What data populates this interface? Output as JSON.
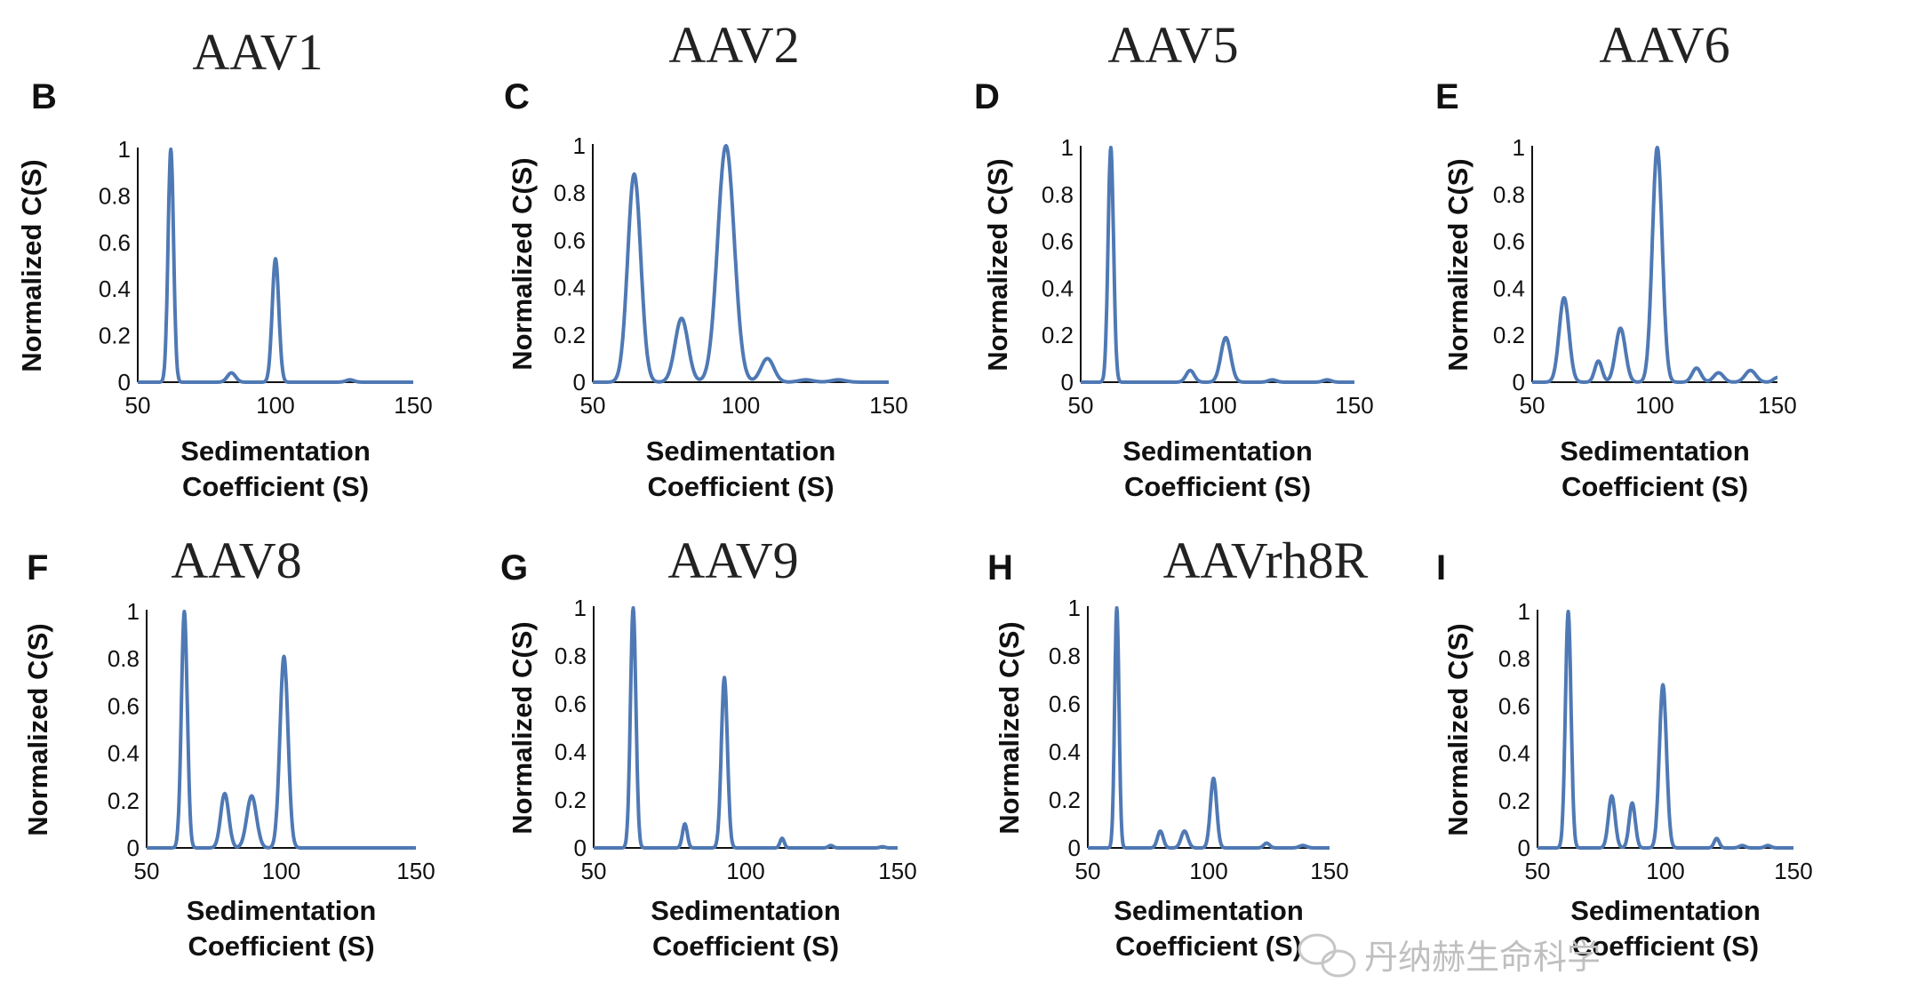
{
  "watermark": {
    "text": "丹纳赫生命科学"
  },
  "chart_data": [
    {
      "id": "B",
      "type": "line",
      "title": "AAV1",
      "xlabel": [
        "Sedimentation",
        "Coefficient (S)"
      ],
      "ylabel": "Normalized C(S)",
      "xlim": [
        50,
        150
      ],
      "ylim": [
        0,
        1
      ],
      "xticks": [
        "50",
        "100",
        "150"
      ],
      "yticks": [
        "0",
        "0.2",
        "0.4",
        "0.6",
        "0.8",
        "1"
      ],
      "peaks": [
        {
          "x": 62,
          "y": 1,
          "w": 1.0
        },
        {
          "x": 84,
          "y": 0.04,
          "w": 1.5
        },
        {
          "x": 100,
          "y": 0.53,
          "w": 1.2
        },
        {
          "x": 127,
          "y": 0.01,
          "w": 1.5
        }
      ]
    },
    {
      "id": "C",
      "type": "line",
      "title": "AAV2",
      "xlabel": [
        "Sedimentation",
        "Coefficient (S)"
      ],
      "ylabel": "Normalized C(S)",
      "xlim": [
        50,
        150
      ],
      "ylim": [
        0,
        1
      ],
      "xticks": [
        "50",
        "100",
        "150"
      ],
      "yticks": [
        "0",
        "0.2",
        "0.4",
        "0.6",
        "0.8",
        "1"
      ],
      "peaks": [
        {
          "x": 64,
          "y": 0.88,
          "w": 2.2
        },
        {
          "x": 80,
          "y": 0.27,
          "w": 2.2
        },
        {
          "x": 95,
          "y": 1,
          "w": 2.8
        },
        {
          "x": 109,
          "y": 0.1,
          "w": 2.2
        },
        {
          "x": 122,
          "y": 0.01,
          "w": 2.5
        },
        {
          "x": 133,
          "y": 0.01,
          "w": 2.5
        }
      ]
    },
    {
      "id": "D",
      "type": "line",
      "title": "AAV5",
      "xlabel": [
        "Sedimentation",
        "Coefficient (S)"
      ],
      "ylabel": "Normalized C(S)",
      "xlim": [
        50,
        150
      ],
      "ylim": [
        0,
        1
      ],
      "xticks": [
        "50",
        "100",
        "150"
      ],
      "yticks": [
        "0",
        "0.2",
        "0.4",
        "0.6",
        "0.8",
        "1"
      ],
      "peaks": [
        {
          "x": 61,
          "y": 1,
          "w": 1.0
        },
        {
          "x": 90,
          "y": 0.05,
          "w": 1.5
        },
        {
          "x": 103,
          "y": 0.19,
          "w": 1.8
        },
        {
          "x": 120,
          "y": 0.01,
          "w": 1.5
        },
        {
          "x": 140,
          "y": 0.01,
          "w": 1.5
        }
      ]
    },
    {
      "id": "E",
      "type": "line",
      "title": "AAV6",
      "xlabel": [
        "Sedimentation",
        "Coefficient (S)"
      ],
      "ylabel": "Normalized C(S)",
      "xlim": [
        50,
        150
      ],
      "ylim": [
        0,
        1
      ],
      "xticks": [
        "50",
        "100",
        "150"
      ],
      "yticks": [
        "0",
        "0.2",
        "0.4",
        "0.6",
        "0.8",
        "1"
      ],
      "peaks": [
        {
          "x": 63,
          "y": 0.36,
          "w": 2.0
        },
        {
          "x": 77,
          "y": 0.09,
          "w": 1.5
        },
        {
          "x": 86,
          "y": 0.23,
          "w": 2.0
        },
        {
          "x": 101,
          "y": 1,
          "w": 2.0
        },
        {
          "x": 117,
          "y": 0.06,
          "w": 1.8
        },
        {
          "x": 126,
          "y": 0.04,
          "w": 2.0
        },
        {
          "x": 139,
          "y": 0.05,
          "w": 2.2
        },
        {
          "x": 150,
          "y": 0.02,
          "w": 1.6
        }
      ]
    },
    {
      "id": "F",
      "type": "line",
      "title": "AAV8",
      "xlabel": [
        "Sedimentation",
        "Coefficient (S)"
      ],
      "ylabel": "Normalized C(S)",
      "xlim": [
        50,
        150
      ],
      "ylim": [
        0,
        1
      ],
      "xticks": [
        "50",
        "100",
        "150"
      ],
      "yticks": [
        "0",
        "0.2",
        "0.4",
        "0.6",
        "0.8",
        "1"
      ],
      "peaks": [
        {
          "x": 64,
          "y": 1,
          "w": 1.1
        },
        {
          "x": 79,
          "y": 0.23,
          "w": 1.5
        },
        {
          "x": 89,
          "y": 0.22,
          "w": 1.8
        },
        {
          "x": 101,
          "y": 0.81,
          "w": 1.5
        }
      ]
    },
    {
      "id": "G",
      "type": "line",
      "title": "AAV9",
      "xlabel": [
        "Sedimentation",
        "Coefficient (S)"
      ],
      "ylabel": "Normalized C(S)",
      "xlim": [
        50,
        150
      ],
      "ylim": [
        0,
        1
      ],
      "xticks": [
        "50",
        "100",
        "150"
      ],
      "yticks": [
        "0",
        "0.2",
        "0.4",
        "0.6",
        "0.8",
        "1"
      ],
      "peaks": [
        {
          "x": 63,
          "y": 1,
          "w": 0.9
        },
        {
          "x": 80,
          "y": 0.1,
          "w": 0.8
        },
        {
          "x": 93,
          "y": 0.71,
          "w": 1.0
        },
        {
          "x": 112,
          "y": 0.04,
          "w": 0.7
        },
        {
          "x": 128,
          "y": 0.01,
          "w": 0.8
        },
        {
          "x": 145,
          "y": 0.005,
          "w": 0.8
        }
      ]
    },
    {
      "id": "H",
      "type": "line",
      "title": "AAVrh8R",
      "xlabel": [
        "Sedimentation",
        "Coefficient (S)"
      ],
      "ylabel": "Normalized C(S)",
      "xlim": [
        50,
        150
      ],
      "ylim": [
        0,
        1
      ],
      "xticks": [
        "50",
        "100",
        "150"
      ],
      "yticks": [
        "0",
        "0.2",
        "0.4",
        "0.6",
        "0.8",
        "1"
      ],
      "peaks": [
        {
          "x": 62,
          "y": 1,
          "w": 0.9
        },
        {
          "x": 80,
          "y": 0.07,
          "w": 1.2
        },
        {
          "x": 90,
          "y": 0.07,
          "w": 1.4
        },
        {
          "x": 102,
          "y": 0.29,
          "w": 1.3
        },
        {
          "x": 124,
          "y": 0.02,
          "w": 1.2
        },
        {
          "x": 139,
          "y": 0.01,
          "w": 1.5
        }
      ]
    },
    {
      "id": "I",
      "type": "line",
      "title": "",
      "xlabel": [
        "Sedimentation",
        "Coefficient (S)"
      ],
      "ylabel": "Normalized C(S)",
      "xlim": [
        50,
        150
      ],
      "ylim": [
        0,
        1
      ],
      "xticks": [
        "50",
        "100",
        "150"
      ],
      "yticks": [
        "0",
        "0.2",
        "0.4",
        "0.6",
        "0.8",
        "1"
      ],
      "peaks": [
        {
          "x": 62,
          "y": 1,
          "w": 1.1
        },
        {
          "x": 79,
          "y": 0.22,
          "w": 1.3
        },
        {
          "x": 87,
          "y": 0.19,
          "w": 1.2
        },
        {
          "x": 99,
          "y": 0.69,
          "w": 1.4
        },
        {
          "x": 120,
          "y": 0.04,
          "w": 1.0
        },
        {
          "x": 130,
          "y": 0.01,
          "w": 1.2
        },
        {
          "x": 140,
          "y": 0.01,
          "w": 1.2
        }
      ]
    }
  ]
}
